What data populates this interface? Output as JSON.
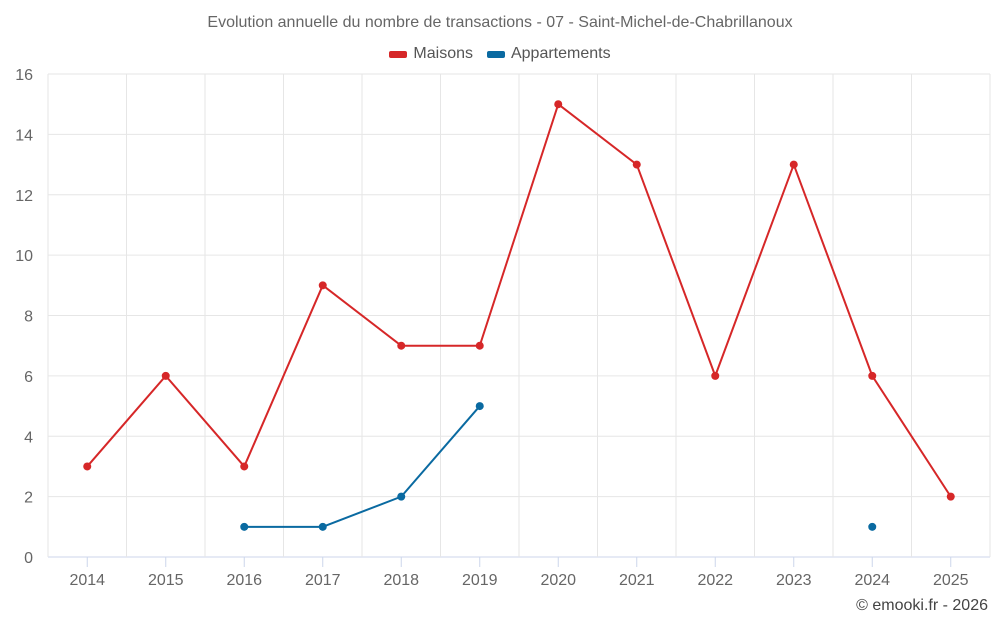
{
  "chart_data": {
    "type": "line",
    "title": "Evolution annuelle du nombre de transactions - 07 - Saint-Michel-de-Chabrillanoux",
    "categories": [
      "2014",
      "2015",
      "2016",
      "2017",
      "2018",
      "2019",
      "2020",
      "2021",
      "2022",
      "2023",
      "2024",
      "2025"
    ],
    "series": [
      {
        "name": "Maisons",
        "color": "#d62728",
        "values": [
          3,
          6,
          3,
          9,
          7,
          7,
          15,
          13,
          6,
          13,
          6,
          2
        ]
      },
      {
        "name": "Appartements",
        "color": "#0a6aa1",
        "values": [
          null,
          null,
          1,
          1,
          2,
          5,
          null,
          null,
          null,
          null,
          1,
          null
        ]
      }
    ],
    "ylim": [
      0,
      16
    ],
    "yticks": [
      0,
      2,
      4,
      6,
      8,
      10,
      12,
      14,
      16
    ],
    "grid": true,
    "legend": "top-center"
  },
  "credit": "© emooki.fr - 2026"
}
